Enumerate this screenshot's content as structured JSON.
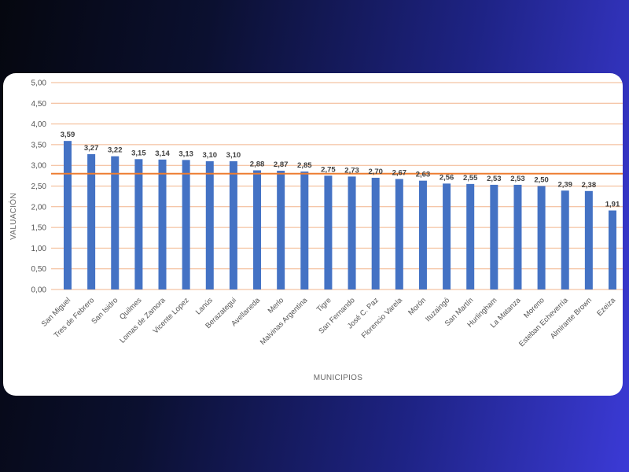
{
  "chart_data": {
    "type": "bar",
    "ylabel": "VALUACIÓN",
    "xlabel": "MUNICIPIOS",
    "ylim": [
      0,
      5
    ],
    "y_ticks": [
      "0,00",
      "0,50",
      "1,00",
      "1,50",
      "2,00",
      "2,50",
      "3,00",
      "3,50",
      "4,00",
      "4,50",
      "5,00"
    ],
    "grid": true,
    "reference_line": 2.8,
    "categories": [
      "San Miguel",
      "Tres de Febrero",
      "San Isidro",
      "Quilmes",
      "Lomas de Zamora",
      "Vicente Lopez",
      "Lanús",
      "Berazategui",
      "Avellaneda",
      "Merlo",
      "Malvinas Argentina",
      "Tigre",
      "San Fernando",
      "José C. Paz",
      "Florencio Varela",
      "Morón",
      "Ituzaingó",
      "San Martín",
      "Hurlingham",
      "La Matanza",
      "Moreno",
      "Esteban Echeverría",
      "Almirante Brown",
      "Ezeiza"
    ],
    "values": [
      3.59,
      3.27,
      3.22,
      3.15,
      3.14,
      3.13,
      3.1,
      3.1,
      2.88,
      2.87,
      2.85,
      2.75,
      2.73,
      2.7,
      2.67,
      2.63,
      2.56,
      2.55,
      2.53,
      2.53,
      2.5,
      2.39,
      2.38,
      1.91
    ],
    "data_labels": [
      "3,59",
      "3,27",
      "3,22",
      "3,15",
      "3,14",
      "3,13",
      "3,10",
      "3,10",
      "2,88",
      "2,87",
      "2,85",
      "2,75",
      "2,73",
      "2,70",
      "2,67",
      "2,63",
      "2,56",
      "2,55",
      "2,53",
      "2,53",
      "2,50",
      "2,39",
      "2,38",
      "1,91"
    ],
    "colors": {
      "bar": "#4472c4",
      "grid": "#f2b48c",
      "reference": "#ed7d31"
    }
  }
}
